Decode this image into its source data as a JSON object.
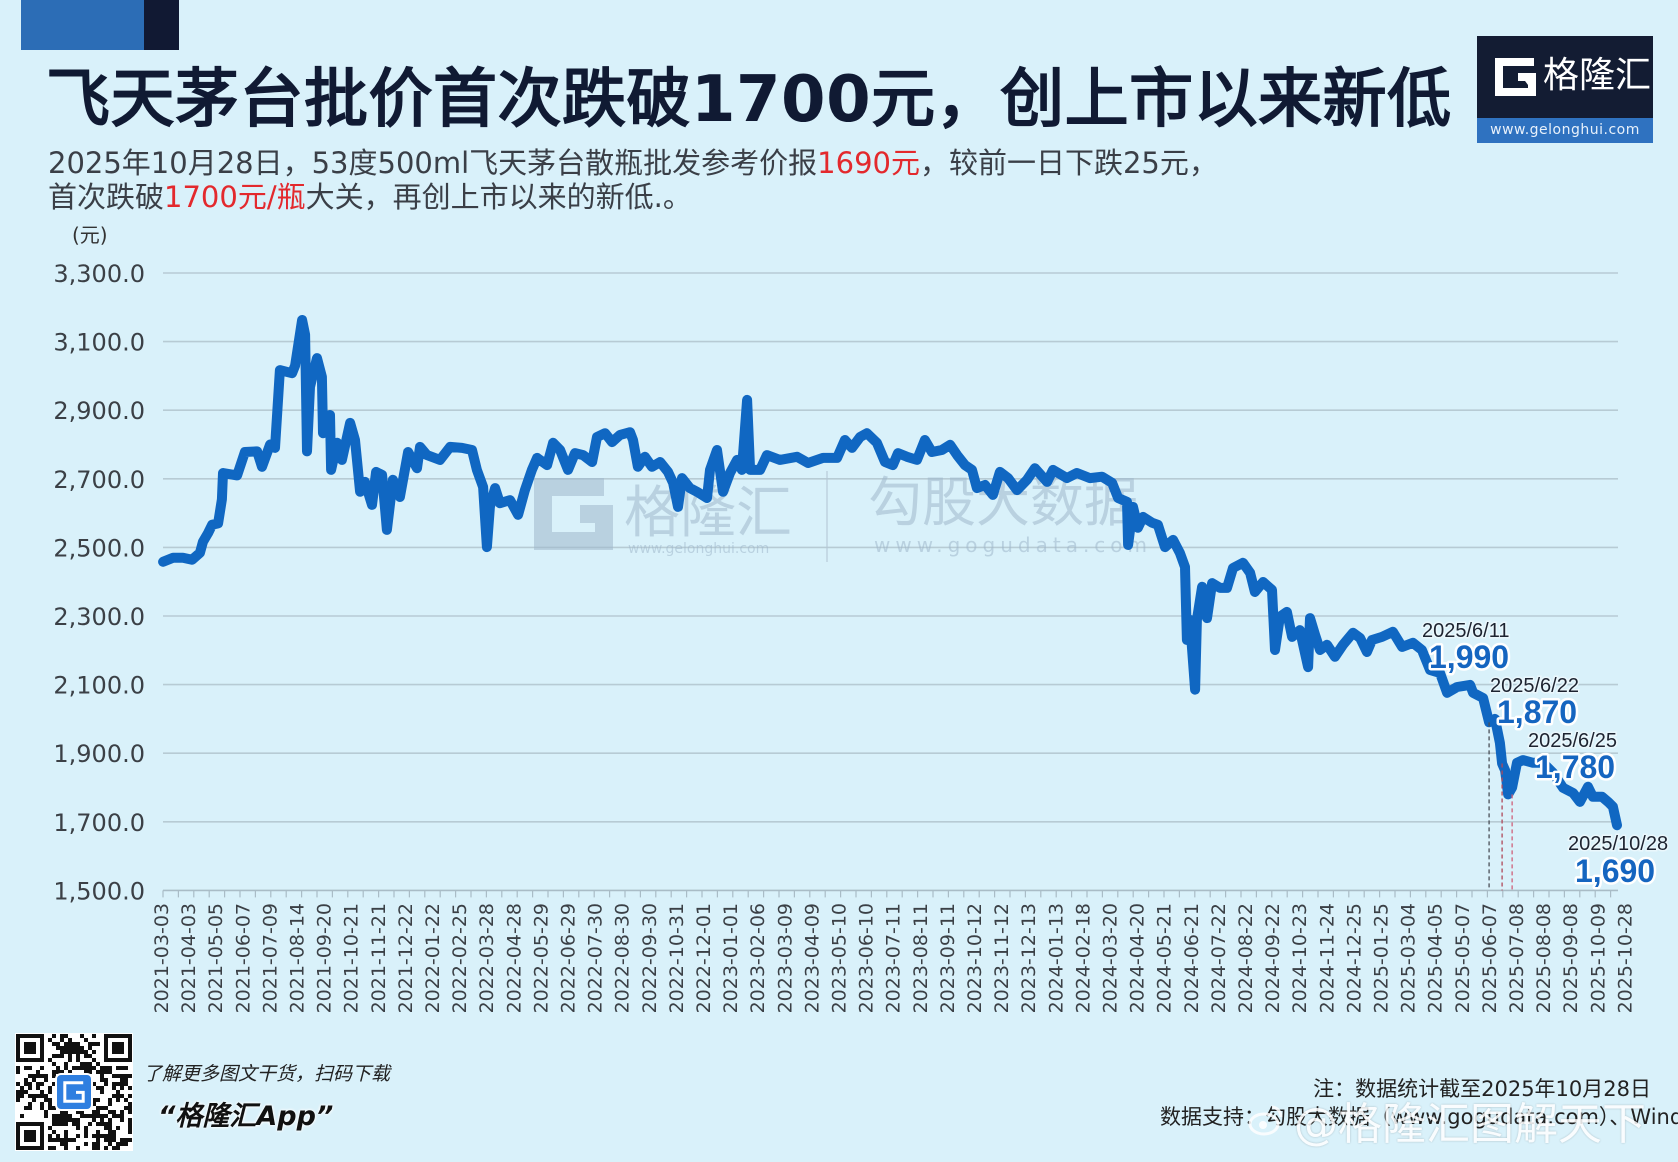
{
  "colors": {
    "background": "#d9f1fa",
    "title": "#101a33",
    "highlight_red": "#e3292d",
    "line": "#1067c2",
    "annotation_value": "#1565c0",
    "accent_blue": "#2c6db6",
    "accent_navy": "#111933"
  },
  "header": {
    "title": "飞天茅台批价首次跌破1700元，创上市以来新低",
    "subtitle": {
      "line1_a": "2025年10月28日，53度500ml飞天茅台散瓶批发参考价报",
      "line1_highlight": "1690元",
      "line1_b": "，较前一日下跌25元，",
      "line2_a": "首次跌破",
      "line2_highlight": "1700元/瓶",
      "line2_b": "大关，再创上市以来的新低.。"
    }
  },
  "brand_logo": {
    "icon": "gelonghui-g-logo-icon",
    "name": "格隆汇",
    "url": "www.gelonghui.com"
  },
  "chart_watermark": {
    "brand_name": "格隆汇",
    "brand_url": "www.gelonghui.com",
    "partner_name": "勾股大数据",
    "partner_url": "www.gogudata.com"
  },
  "chart_data": {
    "type": "line",
    "title": "飞天茅台批价首次跌破1700元，创上市以来新低",
    "xlabel": "",
    "ylabel": "(元)",
    "ylim": [
      1500,
      3300
    ],
    "grid": true,
    "legend": null,
    "y_ticks": [
      3300,
      3100,
      2900,
      2700,
      2500,
      2300,
      2100,
      1900,
      1700,
      1500
    ],
    "y_tick_labels": [
      "3,300.0",
      "3,100.0",
      "2,900.0",
      "2,700.0",
      "2,500.0",
      "2,300.0",
      "2,100.0",
      "1,900.0",
      "1,700.0",
      "1,500.0"
    ],
    "categories": [
      "2021-03-03",
      "2021-04-03",
      "2021-05-05",
      "2021-06-07",
      "2021-07-09",
      "2021-08-14",
      "2021-09-20",
      "2021-10-21",
      "2021-11-21",
      "2021-12-22",
      "2022-01-22",
      "2022-02-25",
      "2022-03-28",
      "2022-04-28",
      "2022-05-29",
      "2022-06-29",
      "2022-07-30",
      "2022-08-30",
      "2022-09-30",
      "2022-10-31",
      "2022-12-01",
      "2023-01-01",
      "2023-02-06",
      "2023-03-09",
      "2023-04-09",
      "2023-05-10",
      "2023-06-10",
      "2023-07-11",
      "2023-08-11",
      "2023-09-11",
      "2023-10-12",
      "2023-11-12",
      "2023-12-13",
      "2024-01-13",
      "2024-02-18",
      "2024-03-20",
      "2024-04-20",
      "2024-05-21",
      "2024-06-21",
      "2024-07-22",
      "2024-08-22",
      "2024-09-22",
      "2024-10-23",
      "2024-11-24",
      "2024-12-25",
      "2025-01-25",
      "2025-03-04",
      "2025-04-05",
      "2025-05-07",
      "2025-06-07",
      "2025-07-08",
      "2025-08-08",
      "2025-09-08",
      "2025-10-09",
      "2025-10-28"
    ],
    "series": [
      {
        "name": "53度500ml飞天茅台散瓶批发参考价（元/瓶）",
        "x_index_note": "position along the categorical axis (0 = 2021-03-03, 54 = 2025-10-28)",
        "x_index": [
          0.04,
          0.41,
          0.77,
          1.11,
          1.4,
          1.51,
          1.7,
          1.85,
          2.07,
          2.21,
          2.25,
          2.77,
          3.06,
          3.51,
          3.69,
          3.99,
          4.17,
          4.35,
          4.8,
          4.91,
          5.17,
          5.28,
          5.35,
          5.46,
          5.72,
          5.9,
          5.94,
          6.2,
          6.24,
          6.46,
          6.64,
          6.94,
          7.12,
          7.31,
          7.49,
          7.75,
          7.9,
          8.12,
          8.3,
          8.52,
          8.78,
          9.08,
          9.41,
          9.52,
          9.78,
          10.26,
          10.63,
          11.07,
          11.44,
          11.62,
          11.85,
          11.99,
          12.1,
          12.29,
          12.47,
          12.84,
          13.14,
          13.39,
          13.65,
          13.84,
          14.21,
          14.43,
          14.69,
          14.98,
          15.24,
          15.54,
          15.87,
          16.05,
          16.35,
          16.61,
          16.9,
          17.27,
          17.38,
          17.56,
          17.82,
          18.08,
          18.38,
          18.67,
          18.86,
          19.04,
          19.19,
          19.48,
          19.74,
          20.11,
          20.22,
          20.48,
          20.7,
          20.96,
          21.22,
          21.4,
          21.59,
          21.7,
          22.07,
          22.32,
          22.8,
          23.43,
          23.84,
          24.39,
          24.91,
          25.2,
          25.46,
          25.76,
          26.01,
          26.38,
          26.68,
          26.97,
          27.16,
          27.49,
          27.86,
          28.15,
          28.41,
          28.78,
          29.08,
          29.34,
          29.63,
          29.89,
          30.07,
          30.37,
          30.66,
          30.92,
          31.22,
          31.55,
          31.92,
          32.21,
          32.66,
          32.88,
          33.39,
          33.76,
          34.24,
          34.69,
          35.06,
          35.28,
          35.61,
          35.65,
          35.83,
          36.01,
          36.2,
          36.53,
          36.75,
          37.01,
          37.31,
          37.56,
          37.75,
          37.82,
          37.93,
          38.12,
          38.19,
          38.38,
          38.56,
          38.75,
          39.04,
          39.3,
          39.52,
          39.89,
          40.15,
          40.33,
          40.63,
          40.96,
          41.07,
          41.25,
          41.51,
          41.7,
          41.99,
          42.29,
          42.36,
          42.55,
          42.73,
          42.99,
          43.28,
          43.58,
          43.95,
          44.21,
          44.46,
          44.65,
          45.02,
          45.42,
          45.76,
          46.16,
          46.49,
          46.79,
          47.16,
          47.42,
          47.79,
          48.27,
          48.38,
          48.75,
          48.97,
          49.19,
          49.37,
          49.45,
          49.56,
          49.67,
          49.82,
          50.0,
          50.22,
          50.59,
          50.96,
          51.33,
          51.7,
          52.07,
          52.32,
          52.62,
          52.8,
          53.14,
          53.36,
          53.54,
          53.69
        ],
        "values": [
          2458,
          2470,
          2470,
          2464,
          2484,
          2516,
          2542,
          2566,
          2570,
          2640,
          2717,
          2710,
          2778,
          2780,
          2735,
          2800,
          2790,
          3017,
          3008,
          3030,
          3163,
          3120,
          2780,
          2968,
          3052,
          2997,
          2833,
          2886,
          2726,
          2805,
          2755,
          2863,
          2813,
          2662,
          2691,
          2624,
          2720,
          2711,
          2551,
          2697,
          2647,
          2778,
          2731,
          2793,
          2769,
          2755,
          2793,
          2790,
          2784,
          2726,
          2676,
          2501,
          2618,
          2673,
          2629,
          2638,
          2595,
          2667,
          2726,
          2761,
          2740,
          2805,
          2784,
          2726,
          2775,
          2769,
          2749,
          2822,
          2833,
          2807,
          2828,
          2836,
          2813,
          2735,
          2764,
          2735,
          2749,
          2720,
          2688,
          2618,
          2702,
          2673,
          2662,
          2644,
          2726,
          2784,
          2662,
          2717,
          2755,
          2726,
          2930,
          2726,
          2726,
          2769,
          2755,
          2764,
          2746,
          2761,
          2761,
          2813,
          2790,
          2822,
          2833,
          2805,
          2749,
          2740,
          2775,
          2764,
          2755,
          2813,
          2778,
          2784,
          2799,
          2769,
          2740,
          2726,
          2673,
          2682,
          2653,
          2720,
          2702,
          2667,
          2697,
          2731,
          2691,
          2726,
          2702,
          2717,
          2702,
          2706,
          2688,
          2644,
          2633,
          2507,
          2618,
          2557,
          2589,
          2572,
          2566,
          2501,
          2522,
          2484,
          2443,
          2230,
          2289,
          2085,
          2289,
          2385,
          2294,
          2396,
          2382,
          2382,
          2440,
          2455,
          2426,
          2370,
          2399,
          2376,
          2201,
          2298,
          2312,
          2239,
          2259,
          2151,
          2294,
          2245,
          2201,
          2216,
          2181,
          2216,
          2251,
          2236,
          2195,
          2230,
          2239,
          2254,
          2210,
          2222,
          2201,
          2143,
          2134,
          2076,
          2093,
          2099,
          2076,
          2061,
          1990,
          2000,
          1930,
          1870,
          1850,
          1780,
          1800,
          1872,
          1880,
          1872,
          1872,
          1843,
          1799,
          1784,
          1758,
          1802,
          1773,
          1773,
          1758,
          1744,
          1690
        ]
      }
    ],
    "annotations": [
      {
        "date": "2025/6/11",
        "value": 1990,
        "label": "1,990"
      },
      {
        "date": "2025/6/22",
        "value": 1870,
        "label": "1,870"
      },
      {
        "date": "2025/6/25",
        "value": 1780,
        "label": "1,780"
      },
      {
        "date": "2025/10/28",
        "value": 1690,
        "label": "1,690"
      }
    ],
    "reference_lines": [
      {
        "x_index": 48.97,
        "value": 1990,
        "color": "#4a4f57"
      },
      {
        "x_index": 49.45,
        "value": 1870,
        "color": "#b0485a"
      },
      {
        "x_index": 49.82,
        "value": 1780,
        "color": "#d0607a"
      }
    ]
  },
  "footer": {
    "qr_label": "qr-code",
    "cta": "了解更多图文干货，扫码下载",
    "app_name": "“格隆汇App”",
    "note": "注：数据统计截至2025年10月28日",
    "source": "数据支持：勾股大数据（www.gogudata.com）、Wind",
    "weibo_watermark": "@格隆汇图解天下"
  }
}
